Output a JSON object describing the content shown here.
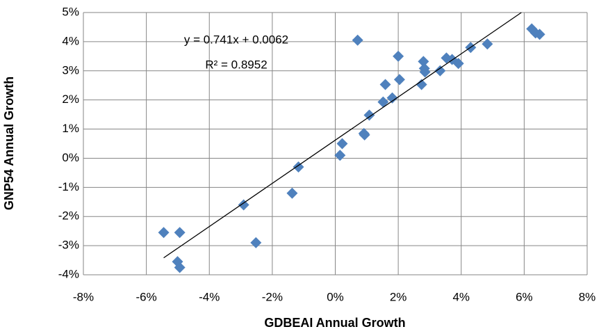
{
  "chart_data": {
    "type": "scatter",
    "x_label": "GDBEAI Annual Growth",
    "y_label": "GNP54 Annual Growth",
    "annotations": [
      "y = 0.741x + 0.0062",
      "R² = 0.8952"
    ],
    "trendline": {
      "slope": 0.741,
      "intercept": 0.62
    },
    "color": "#4f81bd",
    "grid": true,
    "xlim": [
      -8,
      8
    ],
    "ylim": [
      -4,
      5
    ],
    "xticks": [
      {
        "value": -8,
        "label": "-8%"
      },
      {
        "value": -6,
        "label": "-6%"
      },
      {
        "value": -4,
        "label": "-4%"
      },
      {
        "value": -2,
        "label": "-2%"
      },
      {
        "value": 0,
        "label": "0%"
      },
      {
        "value": 2,
        "label": "2%"
      },
      {
        "value": 4,
        "label": "4%"
      },
      {
        "value": 6,
        "label": "6%"
      },
      {
        "value": 8,
        "label": "8%"
      }
    ],
    "yticks": [
      {
        "value": -4,
        "label": "-4%"
      },
      {
        "value": -3,
        "label": "-3%"
      },
      {
        "value": -2,
        "label": "-2%"
      },
      {
        "value": -1,
        "label": "-1%"
      },
      {
        "value": 0,
        "label": "0%"
      },
      {
        "value": 1,
        "label": "1%"
      },
      {
        "value": 2,
        "label": "2%"
      },
      {
        "value": 3,
        "label": "3%"
      },
      {
        "value": 4,
        "label": "4%"
      },
      {
        "value": 5,
        "label": "5%"
      }
    ],
    "x": [
      -5.45,
      -4.94,
      -5.01,
      -4.94,
      -2.91,
      -2.52,
      -1.37,
      -1.17,
      0.15,
      0.22,
      0.71,
      0.91,
      0.93,
      1.08,
      1.59,
      1.52,
      1.81,
      2.0,
      2.04,
      2.74,
      2.8,
      2.83,
      2.85,
      3.33,
      3.53,
      3.71,
      3.91,
      4.3,
      4.83,
      6.24,
      6.36,
      6.49
    ],
    "y": [
      -2.55,
      -2.55,
      -3.55,
      -3.75,
      -1.6,
      -2.9,
      -1.2,
      -0.3,
      0.1,
      0.5,
      4.05,
      0.85,
      0.8,
      1.48,
      2.53,
      1.93,
      2.07,
      3.5,
      2.7,
      2.53,
      3.32,
      3.08,
      2.96,
      3.0,
      3.44,
      3.39,
      3.25,
      3.8,
      3.92,
      4.44,
      4.3,
      4.25
    ]
  }
}
